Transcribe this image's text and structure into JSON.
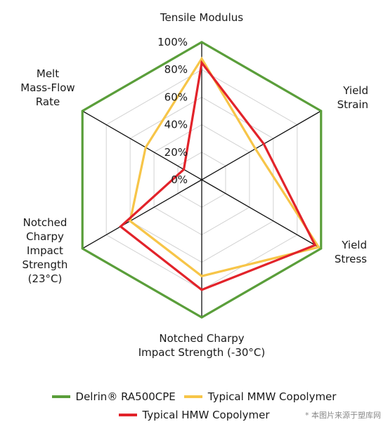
{
  "chart_data": {
    "type": "radar",
    "axes": [
      [
        "Tensile Modulus"
      ],
      [
        "Yield",
        "Strain"
      ],
      [
        "Yield",
        "Stress"
      ],
      [
        "Notched Charpy",
        "Impact Strength (-30°C)"
      ],
      [
        "Notched",
        "Charpy",
        "Impact",
        "Strength",
        "(23°C)"
      ],
      [
        "Melt",
        "Mass-Flow",
        "Rate"
      ]
    ],
    "ticks": [
      "0%",
      "20%",
      "40%",
      "60%",
      "80%",
      "100%"
    ],
    "range": [
      0,
      100
    ],
    "series": [
      {
        "name": "Delrin® RA500CPE",
        "color": "#5a9e3a",
        "values": [
          100,
          100,
          100,
          100,
          100,
          100
        ]
      },
      {
        "name": "Typical MMW Copolymer",
        "color": "#f7c548",
        "values": [
          88,
          45,
          98,
          70,
          60,
          47
        ]
      },
      {
        "name": "Typical HMW Copolymer",
        "color": "#e2232a",
        "values": [
          85,
          52,
          95,
          80,
          68,
          15
        ]
      }
    ]
  },
  "watermark": "* 本图片来源于塑库网"
}
